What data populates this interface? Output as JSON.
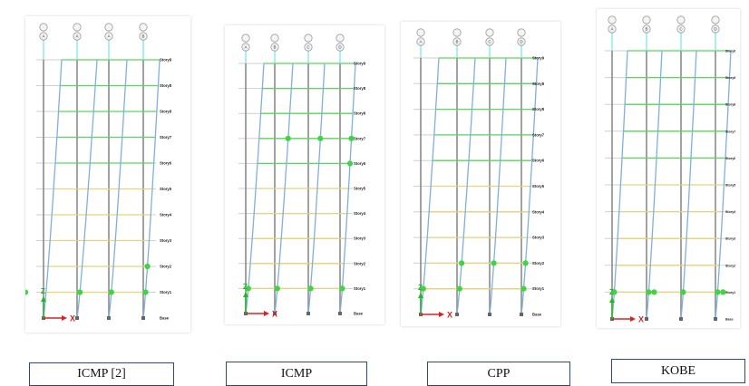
{
  "panels": [
    {
      "caption": "ICMP [2]",
      "stories": [
        "Story8",
        "Story8",
        "Story8",
        "Story7",
        "Story6",
        "Story5",
        "Story4",
        "Story3",
        "Story2",
        "Story1",
        "Base"
      ],
      "axes_top": [
        "A",
        "A",
        "A",
        "B"
      ],
      "hinges": [
        [
          4,
          1
        ],
        [
          1,
          1
        ],
        [
          2,
          1
        ],
        [
          3,
          1
        ],
        [
          3,
          2
        ]
      ]
    },
    {
      "caption": "ICMP",
      "stories": [
        "Story9",
        "Story8",
        "Story8",
        "Story7",
        "Story6",
        "Story5",
        "Story4",
        "Story3",
        "Story2",
        "Story1",
        "Base"
      ],
      "axes_top": [
        "A",
        "B",
        "C",
        "D"
      ],
      "hinges": [
        [
          1,
          7
        ],
        [
          2,
          7
        ],
        [
          3,
          7
        ],
        [
          3,
          6
        ],
        [
          0,
          1
        ],
        [
          1,
          1
        ],
        [
          2,
          1
        ],
        [
          3,
          1
        ]
      ]
    },
    {
      "caption": "CPP",
      "stories": [
        "Story9",
        "Story8",
        "Story8",
        "Story7",
        "Story6",
        "Story5",
        "Story4",
        "Story3",
        "Story2",
        "Story1",
        "Base"
      ],
      "axes_top": [
        "A",
        "B",
        "C",
        "D"
      ],
      "hinges": [
        [
          1,
          2
        ],
        [
          2,
          2
        ],
        [
          3,
          2
        ],
        [
          0,
          1
        ],
        [
          1,
          1
        ],
        [
          3,
          1
        ]
      ]
    },
    {
      "caption": "KOBE",
      "stories": [
        "Story9",
        "Story8",
        "Story8",
        "Story7",
        "Story6",
        "Story5",
        "Story4",
        "Story3",
        "Story2",
        "Story1",
        "Base"
      ],
      "axes_top": [
        "A",
        "B",
        "C",
        "D"
      ],
      "hinges": [
        [
          0,
          1
        ],
        [
          1,
          1
        ],
        [
          1,
          1
        ],
        [
          2,
          1
        ],
        [
          3,
          1
        ],
        [
          3,
          1
        ]
      ]
    }
  ],
  "axis_labels": {
    "x": "X",
    "z": "Z"
  },
  "colors": {
    "undeformed": "#8a8a8a",
    "deformed": "#7fb0e0",
    "cyan": "#6fe6e6",
    "beam_upper": "#5cd65c",
    "beam_lower": "#e8d27a",
    "hinge": "#3ed63e",
    "axis_x": "#e02020",
    "axis_z": "#22b822"
  }
}
